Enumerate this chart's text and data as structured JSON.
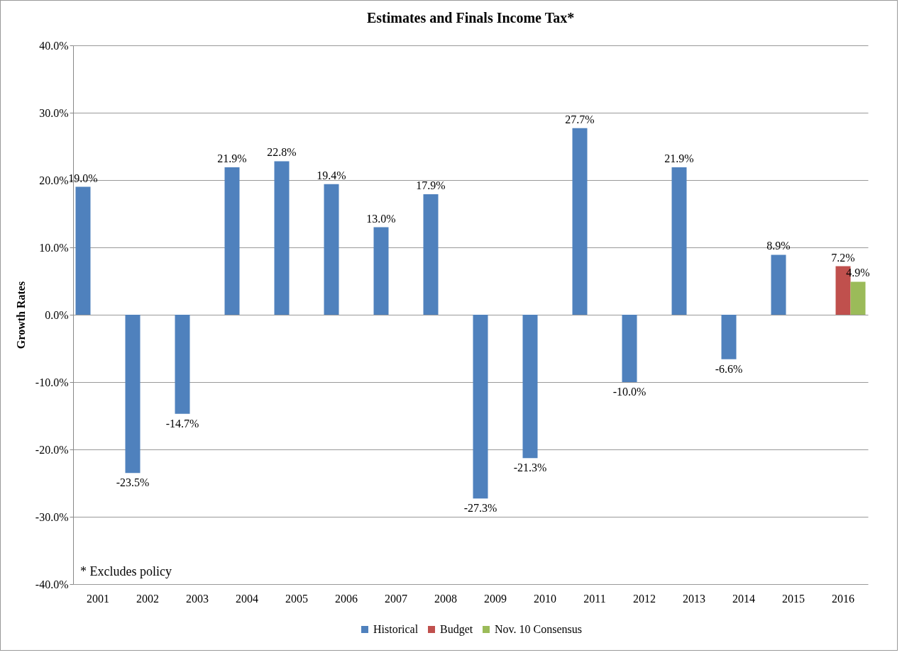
{
  "chart_data": {
    "type": "bar",
    "title": "Estimates and Finals Income Tax*",
    "ylabel": "Growth Rates",
    "categories": [
      "2001",
      "2002",
      "2003",
      "2004",
      "2005",
      "2006",
      "2007",
      "2008",
      "2009",
      "2010",
      "2011",
      "2012",
      "2013",
      "2014",
      "2015",
      "2016"
    ],
    "series": [
      {
        "name": "Historical",
        "color": "#4f81bd",
        "values": [
          19.0,
          -23.5,
          -14.7,
          21.9,
          22.8,
          19.4,
          13.0,
          17.9,
          -27.3,
          -21.3,
          27.7,
          -10.0,
          21.9,
          -6.6,
          8.9,
          null
        ],
        "value_labels": [
          "19.0%",
          "-23.5%",
          "-14.7%",
          "21.9%",
          "22.8%",
          "19.4%",
          "13.0%",
          "17.9%",
          "-27.3%",
          "-21.3%",
          "27.7%",
          "-10.0%",
          "21.9%",
          "-6.6%",
          "8.9%",
          null
        ]
      },
      {
        "name": "Budget",
        "color": "#c0504d",
        "values": [
          null,
          null,
          null,
          null,
          null,
          null,
          null,
          null,
          null,
          null,
          null,
          null,
          null,
          null,
          null,
          7.2
        ],
        "value_labels": [
          null,
          null,
          null,
          null,
          null,
          null,
          null,
          null,
          null,
          null,
          null,
          null,
          null,
          null,
          null,
          "7.2%"
        ]
      },
      {
        "name": "Nov. 10 Consensus",
        "color": "#9bbb59",
        "values": [
          null,
          null,
          null,
          null,
          null,
          null,
          null,
          null,
          null,
          null,
          null,
          null,
          null,
          null,
          null,
          4.9
        ],
        "value_labels": [
          null,
          null,
          null,
          null,
          null,
          null,
          null,
          null,
          null,
          null,
          null,
          null,
          null,
          null,
          null,
          "4.9%"
        ]
      }
    ],
    "ylim": [
      -40,
      40
    ],
    "yticks": [
      {
        "value": -40,
        "label": "-40.0%"
      },
      {
        "value": -30,
        "label": "-30.0%"
      },
      {
        "value": -20,
        "label": "-20.0%"
      },
      {
        "value": -10,
        "label": "-10.0%"
      },
      {
        "value": 0,
        "label": "0.0%"
      },
      {
        "value": 10,
        "label": "10.0%"
      },
      {
        "value": 20,
        "label": "20.0%"
      },
      {
        "value": 30,
        "label": "30.0%"
      },
      {
        "value": 40,
        "label": "40.0%"
      }
    ],
    "grid": "y",
    "legend": "bottom",
    "annotations": [
      "* Excludes policy"
    ]
  }
}
